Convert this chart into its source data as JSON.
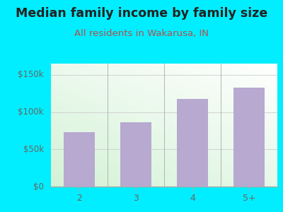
{
  "categories": [
    "2",
    "3",
    "4",
    "5+"
  ],
  "values": [
    73000,
    86000,
    118000,
    133000
  ],
  "bar_color": "#b8a9d0",
  "title": "Median family income by family size",
  "subtitle": "All residents in Wakarusa, IN",
  "title_color": "#222222",
  "subtitle_color": "#b05050",
  "background_color": "#00eeff",
  "ylabel_ticks": [
    0,
    50000,
    100000,
    150000
  ],
  "ylabel_labels": [
    "$0",
    "$50k",
    "$100k",
    "$150k"
  ],
  "ylim": [
    0,
    165000
  ],
  "tick_color": "#666666",
  "title_fontsize": 12.5,
  "subtitle_fontsize": 9.5
}
